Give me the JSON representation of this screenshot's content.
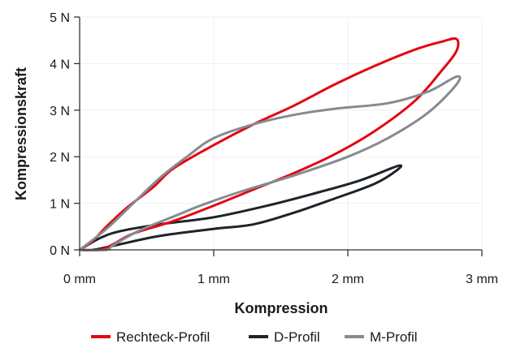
{
  "chart_data": {
    "type": "line",
    "title": "",
    "xlabel": "Kompression",
    "ylabel": "Kompressionskraft",
    "xlim": [
      0,
      3
    ],
    "ylim": [
      0,
      5
    ],
    "x_ticks": [
      {
        "v": 0,
        "label": "0 mm"
      },
      {
        "v": 1,
        "label": "1 mm"
      },
      {
        "v": 2,
        "label": "2 mm"
      },
      {
        "v": 3,
        "label": "3 mm"
      }
    ],
    "y_ticks": [
      {
        "v": 0,
        "label": "0 N"
      },
      {
        "v": 1,
        "label": "1 N"
      },
      {
        "v": 2,
        "label": "2 N"
      },
      {
        "v": 3,
        "label": "3 N"
      },
      {
        "v": 4,
        "label": "4 N"
      },
      {
        "v": 5,
        "label": "5 N"
      }
    ],
    "grid": true,
    "legend_position": "bottom",
    "series": [
      {
        "name": "Rechteck-Profil",
        "color": "#e30613",
        "points": [
          [
            0,
            0
          ],
          [
            0.1,
            0.2
          ],
          [
            0.2,
            0.5
          ],
          [
            0.35,
            0.9
          ],
          [
            0.55,
            1.35
          ],
          [
            0.7,
            1.75
          ],
          [
            1.0,
            2.25
          ],
          [
            1.3,
            2.7
          ],
          [
            1.6,
            3.1
          ],
          [
            1.9,
            3.55
          ],
          [
            2.2,
            3.95
          ],
          [
            2.5,
            4.3
          ],
          [
            2.7,
            4.47
          ],
          [
            2.81,
            4.53
          ],
          [
            2.81,
            4.27
          ],
          [
            2.7,
            3.85
          ],
          [
            2.5,
            3.2
          ],
          [
            2.2,
            2.55
          ],
          [
            1.9,
            2.05
          ],
          [
            1.6,
            1.65
          ],
          [
            1.3,
            1.3
          ],
          [
            1.0,
            0.95
          ],
          [
            0.7,
            0.62
          ],
          [
            0.4,
            0.35
          ],
          [
            0.25,
            0.12
          ],
          [
            0.15,
            0
          ],
          [
            0,
            0
          ]
        ]
      },
      {
        "name": "D-Profil",
        "color": "#1d2329",
        "points": [
          [
            0,
            0
          ],
          [
            0.15,
            0.25
          ],
          [
            0.3,
            0.4
          ],
          [
            0.6,
            0.55
          ],
          [
            1.0,
            0.7
          ],
          [
            1.4,
            0.95
          ],
          [
            1.8,
            1.25
          ],
          [
            2.1,
            1.5
          ],
          [
            2.37,
            1.8
          ],
          [
            2.37,
            1.72
          ],
          [
            2.2,
            1.42
          ],
          [
            1.9,
            1.1
          ],
          [
            1.6,
            0.8
          ],
          [
            1.3,
            0.55
          ],
          [
            1.0,
            0.45
          ],
          [
            0.6,
            0.3
          ],
          [
            0.3,
            0.12
          ],
          [
            0.1,
            0
          ],
          [
            0,
            0
          ]
        ]
      },
      {
        "name": "M-Profil",
        "color": "#868b90",
        "points": [
          [
            0,
            0
          ],
          [
            0.2,
            0.45
          ],
          [
            0.4,
            1.0
          ],
          [
            0.6,
            1.55
          ],
          [
            0.8,
            2.0
          ],
          [
            1.0,
            2.4
          ],
          [
            1.3,
            2.7
          ],
          [
            1.6,
            2.9
          ],
          [
            1.9,
            3.03
          ],
          [
            2.3,
            3.15
          ],
          [
            2.6,
            3.4
          ],
          [
            2.81,
            3.72
          ],
          [
            2.81,
            3.55
          ],
          [
            2.6,
            2.95
          ],
          [
            2.3,
            2.4
          ],
          [
            2.0,
            2.0
          ],
          [
            1.6,
            1.6
          ],
          [
            1.2,
            1.25
          ],
          [
            0.9,
            0.95
          ],
          [
            0.73,
            0.75
          ],
          [
            0.45,
            0.42
          ],
          [
            0.25,
            0.1
          ],
          [
            0.2,
            0
          ],
          [
            0,
            0
          ]
        ]
      }
    ]
  }
}
